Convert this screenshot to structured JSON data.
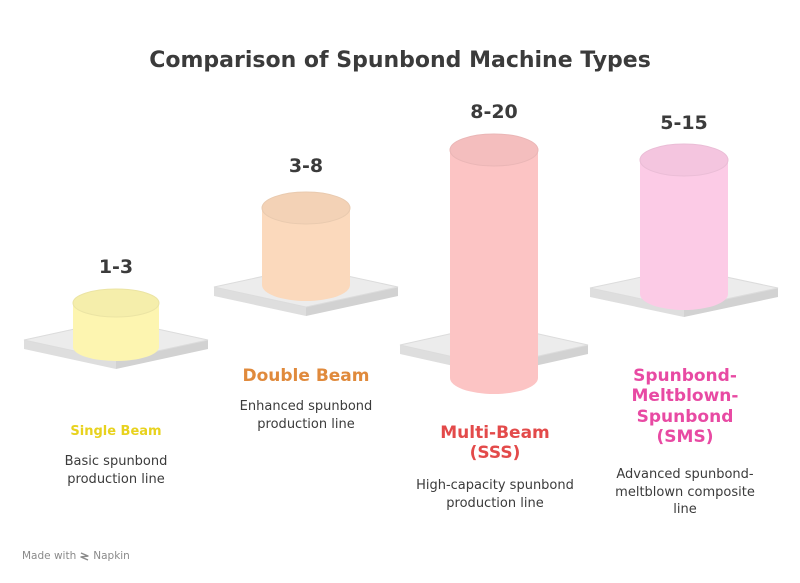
{
  "title": "Comparison of Spunbond Machine Types",
  "footer": {
    "made_with": "Made with",
    "brand": "Napkin",
    "icon": "napkin-logo-icon"
  },
  "items": [
    {
      "value": "1-3",
      "name": "Single Beam",
      "description": "Basic spunbond production line",
      "color": "#e8d21e",
      "fill": "#fdf5b0"
    },
    {
      "value": "3-8",
      "name": "Double Beam",
      "description": "Enhanced spunbond production line",
      "color": "#e08a3c",
      "fill": "#fbd9bc"
    },
    {
      "value": "8-20",
      "name": "Multi-Beam (SSS)",
      "description": "High-capacity spunbond production line",
      "color": "#e34a4a",
      "fill": "#fcc4c4"
    },
    {
      "value": "5-15",
      "name": "Spunbond-Meltblown-Spunbond (SMS)",
      "description": "Advanced spunbond-meltblown composite line",
      "color": "#e84aa3",
      "fill": "#fccbe6"
    }
  ]
}
